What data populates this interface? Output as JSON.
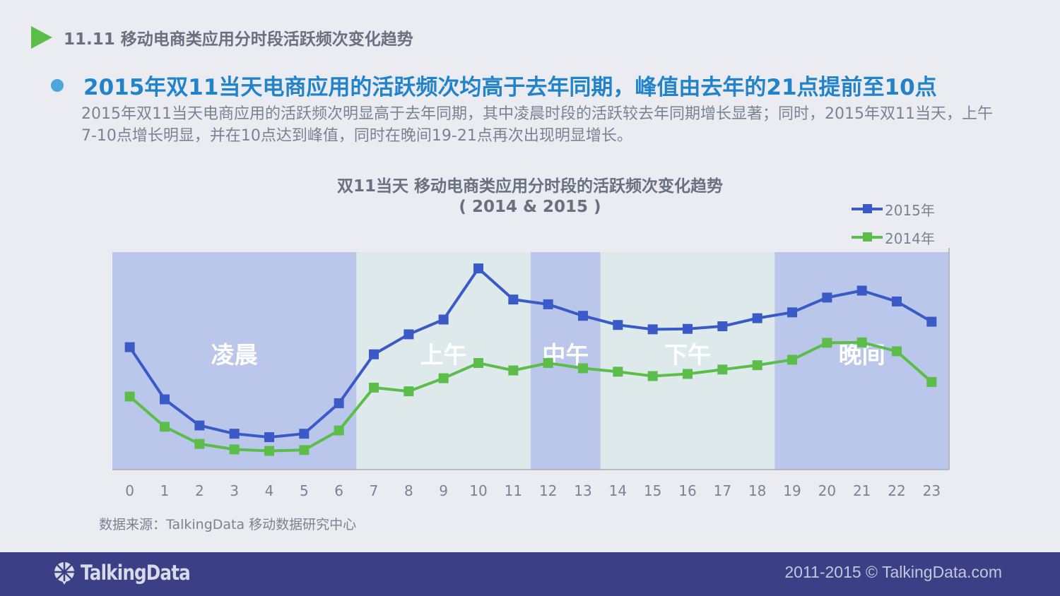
{
  "header": {
    "title": "11.11 移动电商类应用分时段活跃频次变化趋势"
  },
  "headline": "2015年双11当天电商应用的活跃频次均高于去年同期，峰值由去年的21点提前至10点",
  "description": "2015年双11当天电商应用的活跃频次明显高于去年同期，其中凌晨时段的活跃较去年同期增长显著；同时，2015年双11当天，上午7-10点增长明显，并在10点达到峰值，同时在晚间19-21点再次出现明显增长。",
  "source": "数据来源：TalkingData 移动数据研究中心",
  "footer": {
    "logo_text": "TalkingData",
    "copyright": "2011-2015 © TalkingData.com"
  },
  "chart_data": {
    "type": "line",
    "title": "双11当天 移动电商类应用分时段的活跃频次变化趋势",
    "subtitle": "( 2014 & 2015 )",
    "xlabel": "",
    "ylabel": "",
    "x": [
      0,
      1,
      2,
      3,
      4,
      5,
      6,
      7,
      8,
      9,
      10,
      11,
      12,
      13,
      14,
      15,
      16,
      17,
      18,
      19,
      20,
      21,
      22,
      23
    ],
    "ylim": [
      0,
      100
    ],
    "grid": false,
    "legend_position": "top-right",
    "series": [
      {
        "name": "2015年",
        "color": "#3a5bc7",
        "values": [
          56.3,
          32.3,
          20.3,
          16.5,
          14.9,
          16.5,
          30.5,
          53.0,
          62.2,
          69.0,
          92.5,
          78.2,
          76.0,
          70.7,
          66.5,
          64.5,
          64.7,
          65.9,
          69.6,
          72.3,
          79.1,
          82.3,
          77.3,
          68.0
        ]
      },
      {
        "name": "2014年",
        "color": "#5cbd4a",
        "values": [
          33.6,
          19.7,
          11.8,
          9.3,
          8.6,
          9.0,
          18.0,
          37.7,
          36.0,
          42.0,
          49.0,
          45.6,
          49.0,
          46.6,
          45.0,
          43.0,
          44.0,
          46.0,
          48.0,
          50.5,
          58.3,
          58.5,
          54.4,
          40.3
        ]
      }
    ],
    "periods": [
      {
        "label": "凌晨",
        "start": 0,
        "end": 6,
        "color": "#bac6ea"
      },
      {
        "label": "上午",
        "start": 7,
        "end": 11,
        "color": "#dde9ea"
      },
      {
        "label": "中午",
        "start": 12,
        "end": 13,
        "color": "#bac6ea"
      },
      {
        "label": "下午",
        "start": 14,
        "end": 18,
        "color": "#dde9ea"
      },
      {
        "label": "晚间",
        "start": 19,
        "end": 23,
        "color": "#bac6ea"
      }
    ]
  }
}
